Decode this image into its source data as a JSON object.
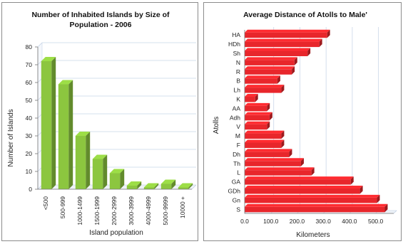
{
  "chart_data": [
    {
      "type": "bar",
      "title_lines": [
        "Number of Inhabited Islands  by Size  of",
        "Population - 2006"
      ],
      "xlabel": "Island population",
      "ylabel": "Number of Islands",
      "categories": [
        "<500",
        "500-999",
        "1000-1499",
        "1500-1999",
        "2000-2999",
        "3000-3999",
        "4000-4999",
        "5000-9999",
        "10000 +"
      ],
      "values": [
        72,
        59,
        30,
        17,
        9,
        2,
        1,
        3,
        1
      ],
      "ylim": [
        0,
        80
      ],
      "yticks": [
        "0",
        "10",
        "20",
        "30",
        "40",
        "50",
        "60",
        "70",
        "80"
      ],
      "bar_color": "#8cc63f",
      "grid": true
    },
    {
      "type": "bar",
      "orientation": "horizontal",
      "title": "Average Distance  of Atolls to Male'",
      "xlabel": "Kilometers",
      "ylabel": "Atolls",
      "categories": [
        "HA",
        "HDh",
        "Sh",
        "N",
        "R",
        "B",
        "Lh",
        "K",
        "AA",
        "Adh",
        "V",
        "M",
        "F",
        "Dh",
        "Th",
        "L",
        "GA",
        "GDh",
        "Gn",
        "S"
      ],
      "values": [
        315,
        285,
        240,
        190,
        180,
        125,
        140,
        40,
        85,
        95,
        85,
        140,
        140,
        170,
        215,
        255,
        405,
        440,
        505,
        535
      ],
      "xlim": [
        0,
        580
      ],
      "xticks": [
        "0.0",
        "100.0",
        "200.0",
        "300.0",
        "400.0",
        "500.0"
      ],
      "bar_color": "#e8262b",
      "grid": true
    }
  ]
}
